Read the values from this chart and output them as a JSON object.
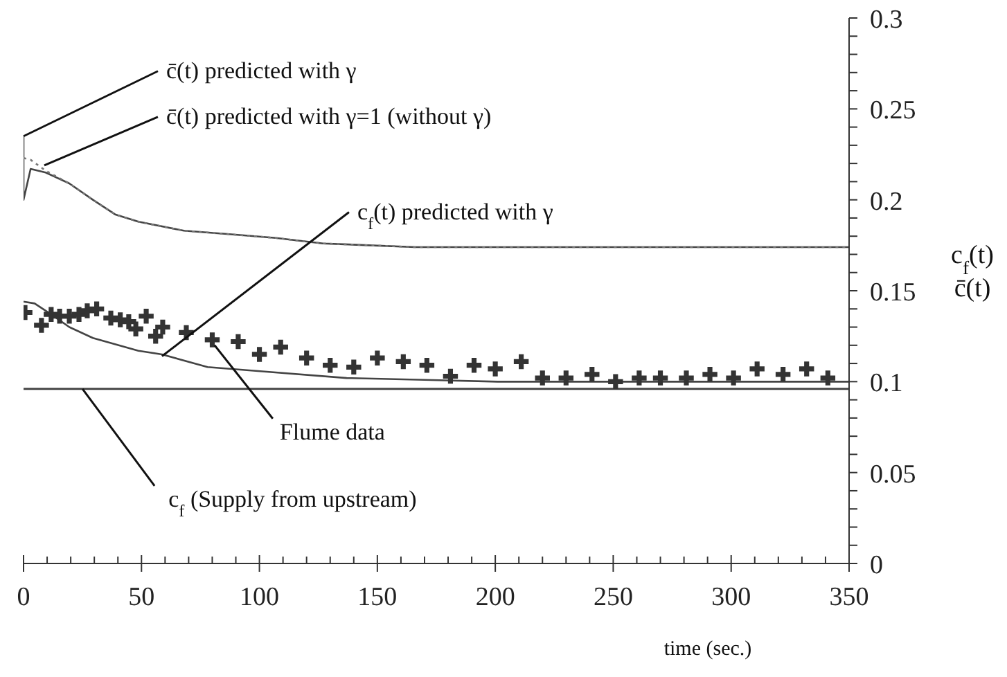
{
  "chart_data": {
    "type": "line",
    "xlabel": "time (sec.)",
    "ylabel": "c$_{f}$(t)\nc̄(t)",
    "xlim": [
      0,
      350
    ],
    "ylim": [
      0,
      0.3
    ],
    "xticks": [
      0,
      {
        "value": 10,
        "label": null
      },
      {
        "value": 20,
        "label": null
      },
      {
        "value": 30,
        "label": null
      },
      {
        "value": 40,
        "label": null
      },
      50,
      {
        "value": 60,
        "label": null
      },
      {
        "value": 70,
        "label": null
      },
      {
        "value": 80,
        "label": null
      },
      {
        "value": 90,
        "label": null
      },
      100,
      {
        "value": 110,
        "label": null
      },
      {
        "value": 120,
        "label": null
      },
      {
        "value": 130,
        "label": null
      },
      {
        "value": 140,
        "label": null
      },
      150,
      {
        "value": 160,
        "label": null
      },
      {
        "value": 170,
        "label": null
      },
      {
        "value": 180,
        "label": null
      },
      {
        "value": 190,
        "label": null
      },
      200,
      {
        "value": 210,
        "label": null
      },
      {
        "value": 220,
        "label": null
      },
      {
        "value": 230,
        "label": null
      },
      {
        "value": 240,
        "label": null
      },
      250,
      {
        "value": 260,
        "label": null
      },
      {
        "value": 270,
        "label": null
      },
      {
        "value": 280,
        "label": null
      },
      {
        "value": 290,
        "label": null
      },
      300,
      {
        "value": 310,
        "label": null
      },
      {
        "value": 320,
        "label": null
      },
      {
        "value": 330,
        "label": null
      },
      {
        "value": 340,
        "label": null
      },
      350
    ],
    "yticks": [
      0,
      {
        "value": 0.01,
        "label": null
      },
      {
        "value": 0.02,
        "label": null
      },
      {
        "value": 0.03,
        "label": null
      },
      {
        "value": 0.04,
        "label": null
      },
      0.05,
      {
        "value": 0.06,
        "label": null
      },
      {
        "value": 0.07,
        "label": null
      },
      {
        "value": 0.08,
        "label": null
      },
      {
        "value": 0.09,
        "label": null
      },
      0.1,
      {
        "value": 0.11,
        "label": null
      },
      {
        "value": 0.12,
        "label": null
      },
      {
        "value": 0.13,
        "label": null
      },
      {
        "value": 0.14,
        "label": null
      },
      0.15,
      {
        "value": 0.16,
        "label": null
      },
      {
        "value": 0.17,
        "label": null
      },
      {
        "value": 0.18,
        "label": null
      },
      {
        "value": 0.19,
        "label": null
      },
      0.2,
      {
        "value": 0.21,
        "label": null
      },
      {
        "value": 0.22,
        "label": null
      },
      {
        "value": 0.23,
        "label": null
      },
      {
        "value": 0.24,
        "label": null
      },
      0.25,
      {
        "value": 0.26,
        "label": null
      },
      {
        "value": 0.27,
        "label": null
      },
      {
        "value": 0.28,
        "label": null
      },
      {
        "value": 0.29,
        "label": null
      },
      0.3
    ],
    "grid": false,
    "legend": false,
    "series": [
      {
        "color": "#444444",
        "line_style": "solid",
        "x": [
          0,
          0,
          3,
          9.4,
          19.4,
          29.4,
          38.8,
          48.7,
          68,
          88,
          107,
          127,
          166,
          200,
          250,
          300,
          350
        ],
        "values": [
          0.235,
          0.2,
          0.217,
          0.215,
          0.209,
          0.2,
          0.192,
          0.188,
          0.183,
          0.181,
          0.179,
          0.176,
          0.174,
          0.174,
          0.174,
          0.174,
          0.174
        ]
      },
      {
        "color": "#777777",
        "line_style": "dotted",
        "x": [
          0,
          3,
          9.4,
          19.4,
          29.4,
          38.8,
          48.7,
          68,
          88,
          107,
          127,
          166,
          200,
          250,
          300,
          350
        ],
        "values": [
          0.223,
          0.222,
          0.216,
          0.209,
          0.2,
          0.192,
          0.188,
          0.183,
          0.181,
          0.179,
          0.176,
          0.174,
          0.174,
          0.174,
          0.174,
          0.174
        ]
      },
      {
        "color": "#444444",
        "line_style": "solid",
        "x": [
          0,
          4.7,
          11.7,
          19.4,
          29.4,
          48.7,
          58.7,
          78,
          97.5,
          137,
          170,
          201,
          250,
          300,
          350
        ],
        "values": [
          0.144,
          0.143,
          0.137,
          0.13,
          0.124,
          0.117,
          0.115,
          0.108,
          0.106,
          0.102,
          0.101,
          0.1,
          0.1,
          0.1,
          0.1
        ]
      },
      {
        "type": "scatter",
        "color": "#333333",
        "marker": "cross",
        "x": [
          0.6,
          7.6,
          11.7,
          15.3,
          19.4,
          23.5,
          27,
          31,
          37,
          41,
          44.6,
          47.6,
          52,
          56,
          59,
          69,
          80,
          91,
          100,
          109,
          120,
          130,
          140,
          150,
          161,
          171,
          181,
          191,
          200,
          211,
          220,
          230,
          241,
          251,
          261,
          270,
          281,
          291,
          301,
          311,
          322,
          332,
          341
        ],
        "values": [
          0.138,
          0.131,
          0.137,
          0.136,
          0.136,
          0.137,
          0.139,
          0.14,
          0.135,
          0.134,
          0.133,
          0.129,
          0.136,
          0.125,
          0.13,
          0.127,
          0.123,
          0.122,
          0.115,
          0.119,
          0.113,
          0.109,
          0.108,
          0.113,
          0.111,
          0.109,
          0.103,
          0.109,
          0.107,
          0.111,
          0.102,
          0.102,
          0.104,
          0.1,
          0.102,
          0.102,
          0.102,
          0.104,
          0.102,
          0.107,
          0.104,
          0.107,
          0.102
        ]
      }
    ],
    "ref_lines": [
      {
        "axis": "y",
        "value": 0.096,
        "label": "c$_{f}$ (Supply from upstream)",
        "color": "#444444"
      }
    ],
    "annotations": [
      {
        "text": "c̄(t) predicted with γ",
        "x": 0,
        "y": 0.235
      },
      {
        "text": "c̄(t) predicted with γ=1 (without γ)",
        "x": 8.8,
        "y": 0.219
      },
      {
        "text": "c$_{f}$(t) predicted with γ",
        "x": 58.7,
        "y": 0.114
      },
      {
        "text": "Flume data",
        "x": 81,
        "y": 0.12
      }
    ]
  }
}
